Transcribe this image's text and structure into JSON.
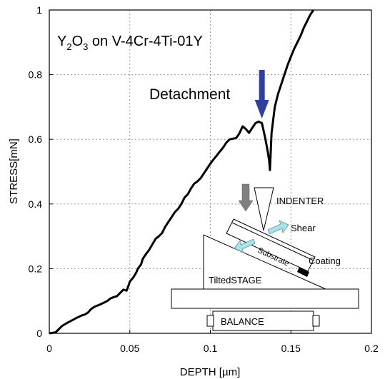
{
  "chart_data": {
    "type": "line",
    "title_main": "Y",
    "title_sub1": "2",
    "title_mid": "O",
    "title_sub2": "3",
    "title_rest": " on V-4Cr-4Ti-01Y",
    "xlabel_text": "DEPTH [",
    "xlabel_unit": "µm",
    "xlabel_close": "]",
    "ylabel": "STRESS[mN]",
    "xlim": [
      0,
      0.2
    ],
    "ylim": [
      0,
      1
    ],
    "xticks": [
      "0",
      "0.05",
      "0.1",
      "0.15",
      "0.2"
    ],
    "yticks": [
      "0",
      "0.2",
      "0.4",
      "0.6",
      "0.8",
      "1"
    ],
    "grid": true,
    "series": [
      {
        "x": [
          0,
          0.004,
          0.006,
          0.008,
          0.011,
          0.014,
          0.017,
          0.02,
          0.022,
          0.024,
          0.026,
          0.028,
          0.031,
          0.034,
          0.036,
          0.038,
          0.04,
          0.042,
          0.044,
          0.046,
          0.048,
          0.049,
          0.05,
          0.052,
          0.054,
          0.055,
          0.057,
          0.058,
          0.06,
          0.062,
          0.064,
          0.066,
          0.068,
          0.07,
          0.072,
          0.074,
          0.076,
          0.078,
          0.08,
          0.082,
          0.084,
          0.086,
          0.088,
          0.09,
          0.092,
          0.094,
          0.096,
          0.098,
          0.1,
          0.102,
          0.104,
          0.106,
          0.108,
          0.11,
          0.112,
          0.114,
          0.116,
          0.118,
          0.12,
          0.122,
          0.124,
          0.126,
          0.128,
          0.13,
          0.132,
          0.134,
          0.1355,
          0.1365,
          0.137,
          0.138,
          0.14,
          0.142,
          0.144,
          0.146,
          0.148,
          0.15,
          0.152,
          0.154,
          0.156,
          0.158,
          0.16,
          0.162,
          0.164
        ],
        "y": [
          0,
          0.003,
          0.013,
          0.023,
          0.032,
          0.04,
          0.048,
          0.055,
          0.058,
          0.064,
          0.075,
          0.082,
          0.088,
          0.095,
          0.1,
          0.108,
          0.112,
          0.115,
          0.125,
          0.135,
          0.132,
          0.145,
          0.16,
          0.172,
          0.188,
          0.2,
          0.213,
          0.23,
          0.245,
          0.258,
          0.275,
          0.292,
          0.3,
          0.31,
          0.33,
          0.345,
          0.36,
          0.375,
          0.385,
          0.4,
          0.42,
          0.43,
          0.448,
          0.463,
          0.47,
          0.48,
          0.495,
          0.51,
          0.525,
          0.538,
          0.55,
          0.563,
          0.575,
          0.59,
          0.6,
          0.602,
          0.604,
          0.618,
          0.64,
          0.632,
          0.62,
          0.635,
          0.65,
          0.655,
          0.65,
          0.605,
          0.565,
          0.535,
          0.505,
          0.62,
          0.7,
          0.74,
          0.77,
          0.8,
          0.83,
          0.855,
          0.88,
          0.9,
          0.92,
          0.945,
          0.965,
          0.985,
          1.0
        ]
      }
    ],
    "annotations": {
      "detachment": "Detachment",
      "detachment_arrow_at": {
        "x": 0.132,
        "y": 0.66
      },
      "indenter": "INDENTER",
      "shear": "Shear",
      "substrate": "Substrate",
      "coating": "Coating",
      "stage": "TiltedSTAGE",
      "balance": "BALANCE"
    },
    "colors": {
      "line": "#000000",
      "arrow": "#2e3f9e",
      "shear_arrow": "#a8e3ea",
      "indenter_arrow": "#808080",
      "grid": "#999999"
    }
  }
}
